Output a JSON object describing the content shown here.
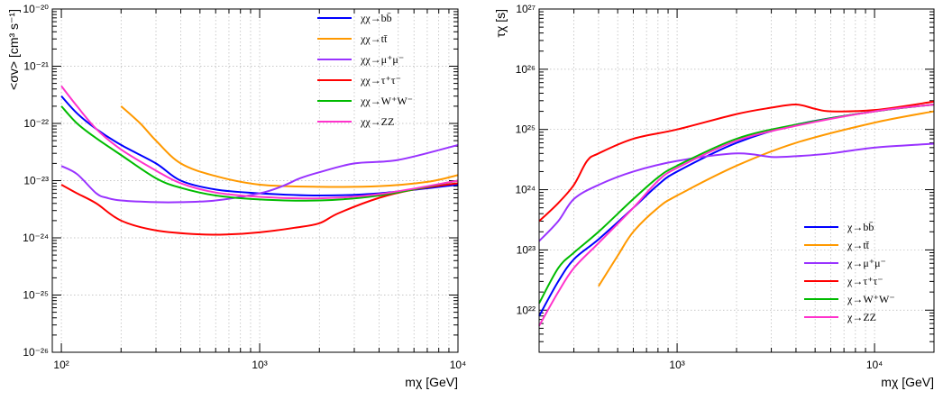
{
  "chart_data": [
    {
      "type": "line",
      "xscale": "log",
      "yscale": "log",
      "xlim": [
        90,
        10000
      ],
      "ylim": [
        1e-26,
        1e-20
      ],
      "grid": true,
      "legend_position": "top-right",
      "xlabel": "mχ [GeV]",
      "ylabel": "<σv> [cm³ s⁻¹]",
      "x_ticks": [
        "10²",
        "10³",
        "10⁴"
      ],
      "y_ticks": [
        "10⁻²⁶",
        "10⁻²⁵",
        "10⁻²⁴",
        "10⁻²³",
        "10⁻²²",
        "10⁻²¹",
        "10⁻²⁰"
      ],
      "series": [
        {
          "name": "χχ→bb̄",
          "color": "#0000ff",
          "points": [
            [
              100,
              3e-22
            ],
            [
              120,
              1.5e-22
            ],
            [
              150,
              8e-23
            ],
            [
              200,
              4.2e-23
            ],
            [
              300,
              2e-23
            ],
            [
              400,
              1e-23
            ],
            [
              600,
              7e-24
            ],
            [
              1000,
              6e-24
            ],
            [
              2000,
              5.5e-24
            ],
            [
              4000,
              6e-24
            ],
            [
              10000,
              8.5e-24
            ]
          ]
        },
        {
          "name": "χχ→tt̄",
          "color": "#ff9900",
          "points": [
            [
              200,
              2e-22
            ],
            [
              250,
              1e-22
            ],
            [
              300,
              5e-23
            ],
            [
              400,
              2e-23
            ],
            [
              600,
              1.2e-23
            ],
            [
              1000,
              8.5e-24
            ],
            [
              2000,
              7.8e-24
            ],
            [
              4000,
              8e-24
            ],
            [
              7000,
              9.5e-24
            ],
            [
              10000,
              1.25e-23
            ]
          ]
        },
        {
          "name": "χχ→μ⁺μ⁻",
          "color": "#9933ff",
          "points": [
            [
              100,
              1.8e-23
            ],
            [
              120,
              1.3e-23
            ],
            [
              150,
              6e-24
            ],
            [
              170,
              5e-24
            ],
            [
              200,
              4.5e-24
            ],
            [
              300,
              4.2e-24
            ],
            [
              400,
              4.2e-24
            ],
            [
              600,
              4.5e-24
            ],
            [
              1000,
              6e-24
            ],
            [
              1300,
              8e-24
            ],
            [
              1600,
              1.1e-23
            ],
            [
              2000,
              1.4e-23
            ],
            [
              3000,
              2e-23
            ],
            [
              5000,
              2.3e-23
            ],
            [
              10000,
              4.2e-23
            ]
          ]
        },
        {
          "name": "χχ→τ⁺τ⁻",
          "color": "#ff0000",
          "points": [
            [
              100,
              8.5e-24
            ],
            [
              120,
              6e-24
            ],
            [
              150,
              4e-24
            ],
            [
              200,
              2e-24
            ],
            [
              300,
              1.35e-24
            ],
            [
              500,
              1.15e-24
            ],
            [
              700,
              1.15e-24
            ],
            [
              1000,
              1.25e-24
            ],
            [
              1500,
              1.5e-24
            ],
            [
              2000,
              1.8e-24
            ],
            [
              2500,
              2.7e-24
            ],
            [
              4000,
              5e-24
            ],
            [
              6000,
              7e-24
            ],
            [
              10000,
              9e-24
            ]
          ]
        },
        {
          "name": "χχ→W⁺W⁻",
          "color": "#00bb00",
          "points": [
            [
              100,
              2e-22
            ],
            [
              120,
              1e-22
            ],
            [
              150,
              5.5e-23
            ],
            [
              200,
              2.8e-23
            ],
            [
              300,
              1.1e-23
            ],
            [
              400,
              7.5e-24
            ],
            [
              600,
              5.5e-24
            ],
            [
              1000,
              4.7e-24
            ],
            [
              2000,
              4.5e-24
            ],
            [
              4000,
              5.5e-24
            ],
            [
              10000,
              1e-23
            ]
          ]
        },
        {
          "name": "χχ→ZZ",
          "color": "#ff33cc",
          "points": [
            [
              100,
              4.5e-22
            ],
            [
              120,
              2e-22
            ],
            [
              150,
              8e-23
            ],
            [
              200,
              3.5e-23
            ],
            [
              300,
              1.5e-23
            ],
            [
              400,
              9e-24
            ],
            [
              600,
              6.2e-24
            ],
            [
              1000,
              5.2e-24
            ],
            [
              2000,
              4.9e-24
            ],
            [
              4000,
              5.8e-24
            ],
            [
              10000,
              1e-23
            ]
          ]
        }
      ]
    },
    {
      "type": "line",
      "xscale": "log",
      "yscale": "log",
      "xlim": [
        200,
        20000
      ],
      "ylim": [
        2e+21,
        1e+27
      ],
      "grid": true,
      "legend_position": "bottom-right",
      "xlabel": "mχ [GeV]",
      "ylabel": "τχ [s]",
      "x_ticks": [
        "10³",
        "10⁴"
      ],
      "y_ticks": [
        "10²²",
        "10²³",
        "10²⁴",
        "10²⁵",
        "10²⁶",
        "10²⁷"
      ],
      "series": [
        {
          "name": "χ→bb̄",
          "color": "#0000ff",
          "points": [
            [
              200,
              8e+21
            ],
            [
              250,
              3e+22
            ],
            [
              300,
              7e+22
            ],
            [
              400,
              1.5e+23
            ],
            [
              600,
              5e+23
            ],
            [
              800,
              1.2e+24
            ],
            [
              1000,
              2e+24
            ],
            [
              2000,
              6e+24
            ],
            [
              4000,
              1.2e+25
            ],
            [
              10000,
              2e+25
            ],
            [
              20000,
              2.6e+25
            ]
          ]
        },
        {
          "name": "χ→tt̄",
          "color": "#ff9900",
          "points": [
            [
              400,
              2.5e+22
            ],
            [
              500,
              8e+22
            ],
            [
              600,
              2e+23
            ],
            [
              800,
              5e+23
            ],
            [
              1000,
              8e+23
            ],
            [
              2000,
              2.5e+24
            ],
            [
              4000,
              6e+24
            ],
            [
              10000,
              1.3e+25
            ],
            [
              20000,
              2e+25
            ]
          ]
        },
        {
          "name": "χ→μ⁺μ⁻",
          "color": "#9933ff",
          "points": [
            [
              200,
              1.4e+23
            ],
            [
              250,
              3e+23
            ],
            [
              300,
              7e+23
            ],
            [
              400,
              1.2e+24
            ],
            [
              600,
              2e+24
            ],
            [
              1000,
              3e+24
            ],
            [
              2000,
              4e+24
            ],
            [
              3000,
              3.5e+24
            ],
            [
              4000,
              3.6e+24
            ],
            [
              6000,
              4e+24
            ],
            [
              10000,
              5e+24
            ],
            [
              20000,
              5.8e+24
            ]
          ]
        },
        {
          "name": "χ→τ⁺τ⁻",
          "color": "#ff0000",
          "points": [
            [
              200,
              3e+23
            ],
            [
              250,
              6e+23
            ],
            [
              300,
              1.2e+24
            ],
            [
              350,
              3e+24
            ],
            [
              400,
              4e+24
            ],
            [
              600,
              7e+24
            ],
            [
              1000,
              1e+25
            ],
            [
              2000,
              1.8e+25
            ],
            [
              3000,
              2.3e+25
            ],
            [
              4000,
              2.6e+25
            ],
            [
              5000,
              2.2e+25
            ],
            [
              6000,
              2e+25
            ],
            [
              10000,
              2.1e+25
            ],
            [
              20000,
              2.9e+25
            ]
          ]
        },
        {
          "name": "χ→W⁺W⁻",
          "color": "#00bb00",
          "points": [
            [
              200,
              1.3e+22
            ],
            [
              250,
              5e+22
            ],
            [
              300,
              9e+22
            ],
            [
              400,
              2e+23
            ],
            [
              600,
              7e+23
            ],
            [
              800,
              1.6e+24
            ],
            [
              1000,
              2.5e+24
            ],
            [
              2000,
              7e+24
            ],
            [
              4000,
              1.2e+25
            ],
            [
              10000,
              2e+25
            ],
            [
              20000,
              2.6e+25
            ]
          ]
        },
        {
          "name": "χ→ZZ",
          "color": "#ff33cc",
          "points": [
            [
              200,
              5.5e+21
            ],
            [
              250,
              2e+22
            ],
            [
              300,
              5e+22
            ],
            [
              400,
              1.3e+23
            ],
            [
              600,
              5e+23
            ],
            [
              800,
              1.4e+24
            ],
            [
              1000,
              2.3e+24
            ],
            [
              2000,
              6.5e+24
            ],
            [
              4000,
              1.15e+25
            ],
            [
              10000,
              2e+25
            ],
            [
              20000,
              2.6e+25
            ]
          ]
        }
      ]
    }
  ]
}
